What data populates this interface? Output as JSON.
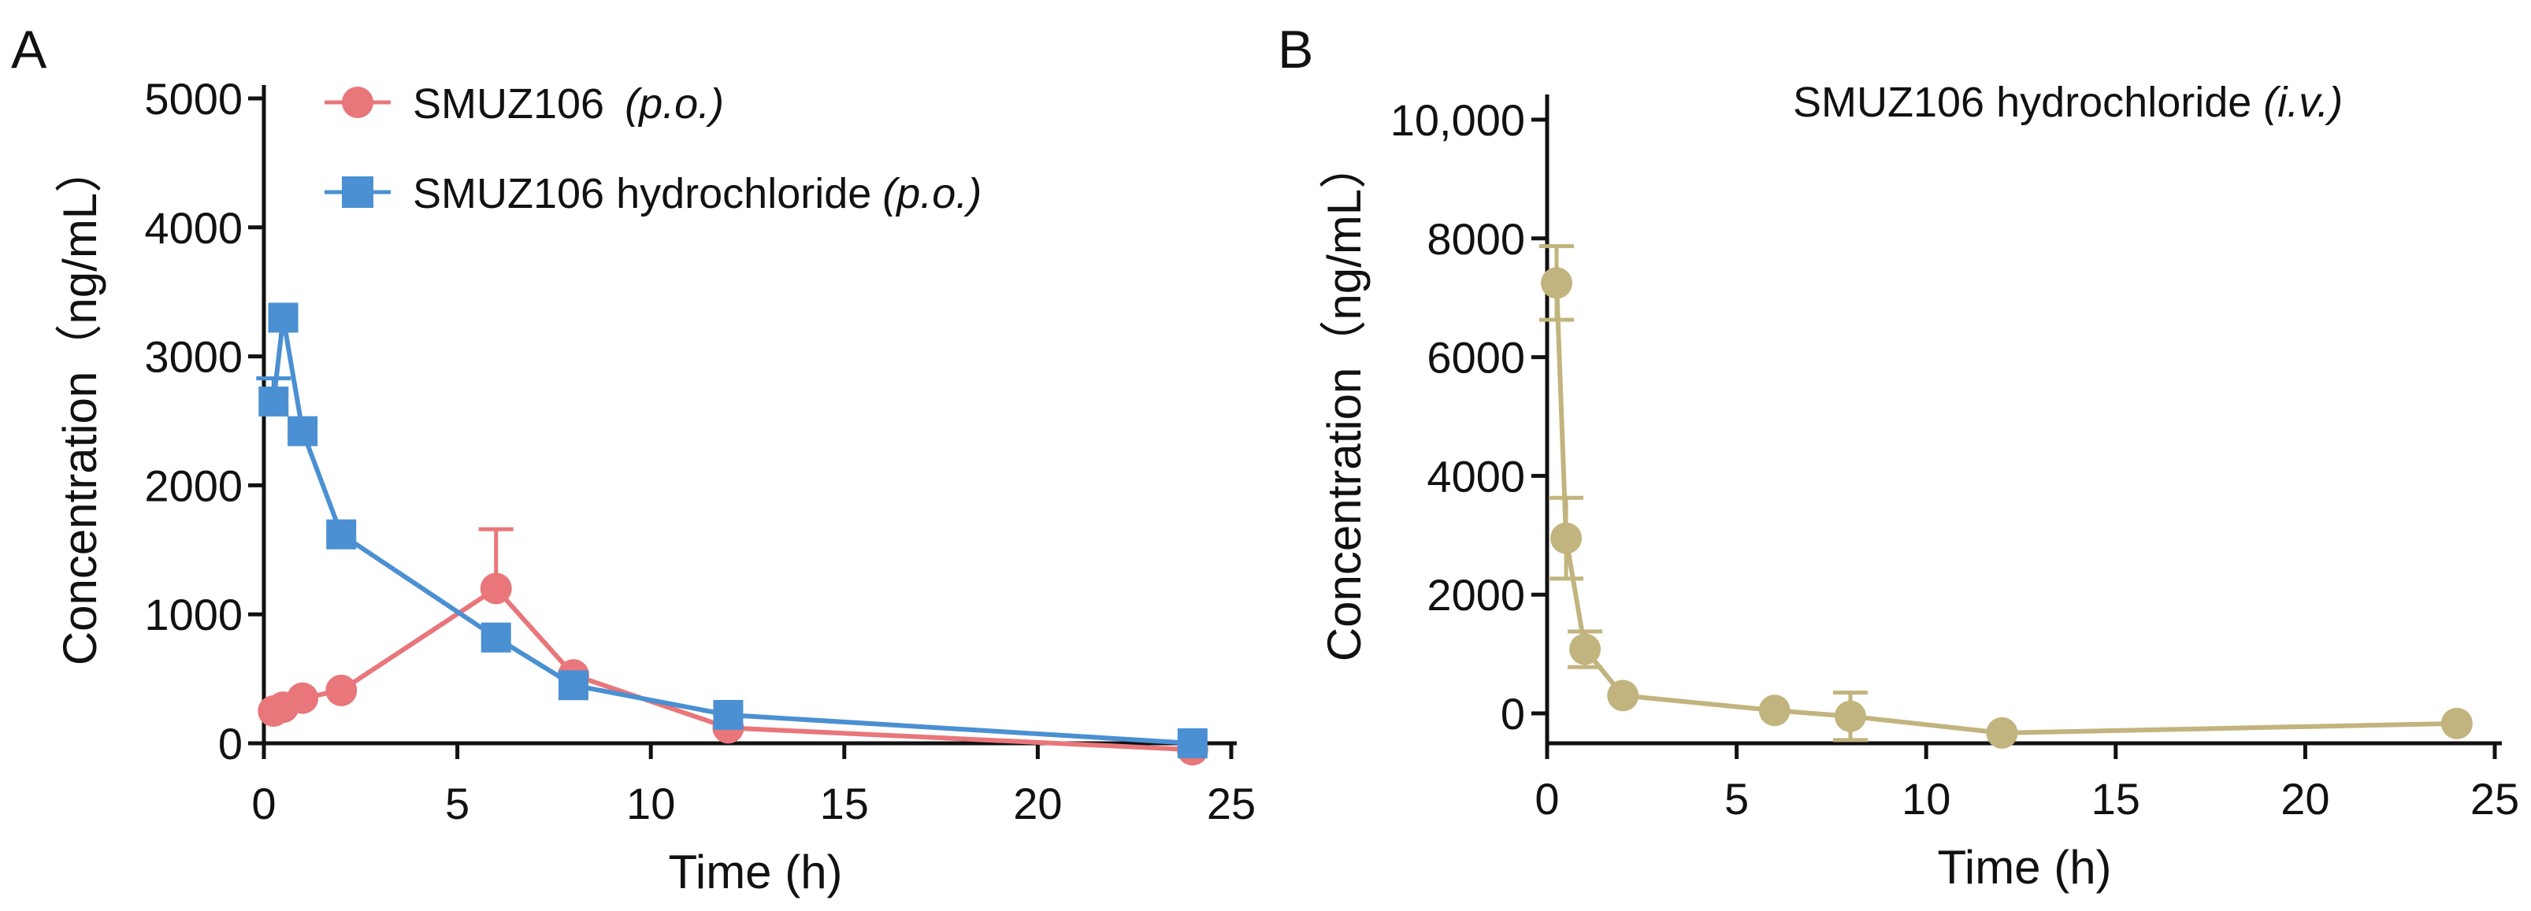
{
  "chart_data": [
    {
      "panel": "A",
      "type": "line",
      "xlabel": "Time (h)",
      "ylabel": "Concentration（ng/mL）",
      "xlim": [
        0,
        25
      ],
      "ylim": [
        0,
        5000
      ],
      "xticks": [
        "0",
        "5",
        "10",
        "15",
        "20",
        "25"
      ],
      "yticks": [
        "0",
        "1000",
        "2000",
        "3000",
        "4000",
        "5000"
      ],
      "legend_position": "top-left",
      "series": [
        {
          "name": "SMUZ106",
          "route": "(p.o.)",
          "color": "#E8767A",
          "marker": "circle",
          "x": [
            0.25,
            0.5,
            1,
            2,
            6,
            8,
            12,
            24
          ],
          "y": [
            250,
            280,
            350,
            410,
            1200,
            530,
            120,
            -50
          ],
          "err": [
            0,
            0,
            0,
            0,
            460,
            0,
            0,
            0
          ]
        },
        {
          "name": "SMUZ106 hydrochloride",
          "route": "(p.o.)",
          "color": "#4A90D2",
          "marker": "square",
          "x": [
            0.25,
            0.5,
            1,
            2,
            6,
            8,
            12,
            24
          ],
          "y": [
            2650,
            3300,
            2420,
            1620,
            820,
            450,
            220,
            0
          ],
          "err": [
            180,
            0,
            0,
            0,
            0,
            0,
            0,
            0
          ]
        }
      ]
    },
    {
      "panel": "B",
      "type": "line",
      "title_main": "SMUZ106 hydrochloride ",
      "title_route": "(i.v.)",
      "xlabel": "Time (h)",
      "ylabel": "Concentration（ng/mL）",
      "xlim": [
        0,
        25
      ],
      "ylim": [
        -500,
        10000
      ],
      "xticks": [
        "0",
        "5",
        "10",
        "15",
        "20",
        "25"
      ],
      "yticks": [
        "0",
        "2000",
        "4000",
        "6000",
        "8000",
        "10,000"
      ],
      "series": [
        {
          "name": "SMUZ106 hydrochloride (i.v.)",
          "color": "#C2B47E",
          "marker": "circle",
          "x": [
            0.25,
            0.5,
            1,
            2,
            6,
            8,
            12,
            24
          ],
          "y": [
            7250,
            2950,
            1080,
            300,
            50,
            -50,
            -330,
            -170
          ],
          "err": [
            620,
            680,
            300,
            0,
            0,
            400,
            0,
            0
          ]
        }
      ]
    }
  ]
}
